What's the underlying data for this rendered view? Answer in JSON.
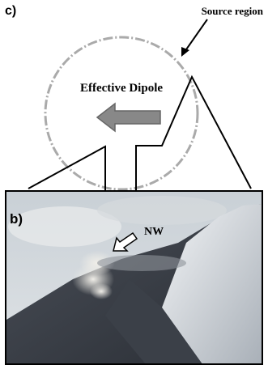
{
  "panel_c": {
    "label": "c)",
    "source_label": "Source region",
    "dipole_label": "Effective Dipole"
  },
  "panel_b": {
    "label": "b)",
    "direction_label": "NW"
  }
}
